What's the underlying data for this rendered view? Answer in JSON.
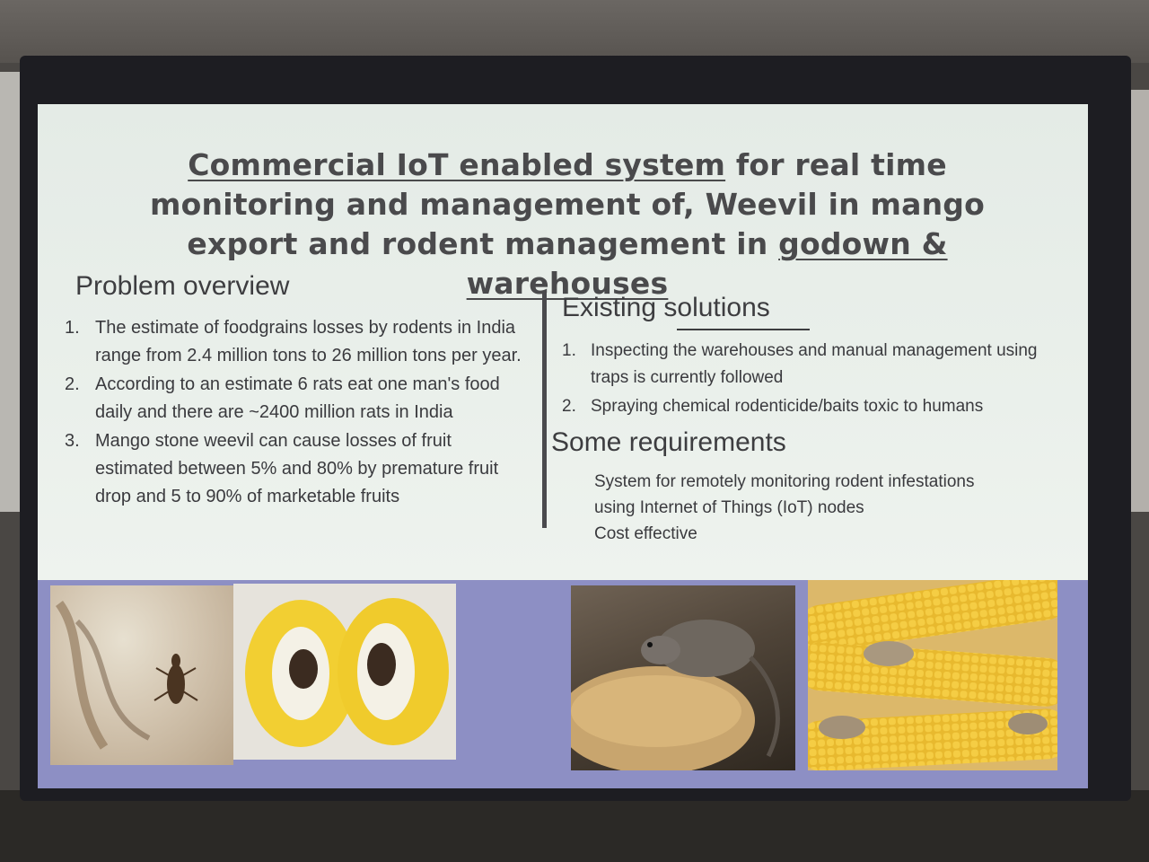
{
  "slide": {
    "title": {
      "part1_underlined": "Commercial IoT enabled system",
      "part2": " for real time monitoring and management of, Weevil in mango export and rodent management in ",
      "part3_underlined": "godown  & warehouses"
    },
    "problem": {
      "heading": "Problem overview",
      "items": [
        {
          "num": "1.",
          "text": "The estimate of foodgrains losses by rodents in India range from 2.4 million tons to 26 million tons per year."
        },
        {
          "num": "2.",
          "text": "According to an estimate 6 rats eat one man's food daily and there are ~2400 million rats in India"
        },
        {
          "num": "3.",
          "text": "Mango stone weevil can cause losses of fruit estimated between 5% and 80% by premature fruit drop and 5 to 90% of marketable fruits"
        }
      ]
    },
    "existing": {
      "heading": "Existing solutions",
      "items": [
        {
          "num": "1.",
          "text": "Inspecting the warehouses and manual management using traps is currently followed"
        },
        {
          "num": "2.",
          "text": "Spraying chemical rodenticide/baits toxic to humans"
        }
      ]
    },
    "requirements": {
      "heading": "Some requirements",
      "line1": "System for remotely monitoring rodent infestations",
      "line2": "using Internet of Things (IoT) nodes",
      "line3": "Cost effective"
    }
  }
}
